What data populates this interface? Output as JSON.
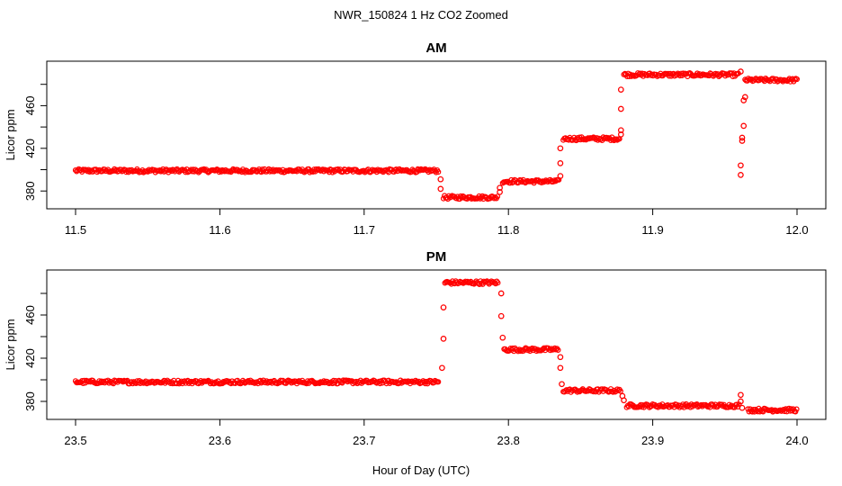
{
  "figure": {
    "title": "NWR_150824  1 Hz CO2 Zoomed",
    "xlabel": "Hour of Day (UTC)"
  },
  "colors": {
    "points": "#ff0000",
    "axes": "#000000",
    "background": "#ffffff"
  },
  "chart_data": [
    {
      "type": "scatter",
      "title": "AM",
      "xlabel": "Hour of Day (UTC)",
      "ylabel": "Licor ppm",
      "xlim": [
        11.5,
        12.0
      ],
      "ylim": [
        365,
        500
      ],
      "x_ticks": [
        11.5,
        11.6,
        11.7,
        11.8,
        11.9,
        12.0
      ],
      "x_tick_labels": [
        "11.5",
        "11.6",
        "11.7",
        "11.8",
        "11.9",
        "12.0"
      ],
      "y_ticks": [
        380,
        420,
        460
      ],
      "y_tick_labels": [
        "380",
        "420",
        "460"
      ],
      "grid": false,
      "legend": "none",
      "dense_segments": [
        {
          "x_start": 11.5,
          "x_end": 11.752,
          "y": 399
        },
        {
          "x_start": 11.755,
          "x_end": 11.793,
          "y": 374
        },
        {
          "x_start": 11.796,
          "x_end": 11.835,
          "y": 389
        },
        {
          "x_start": 11.838,
          "x_end": 11.877,
          "y": 429
        },
        {
          "x_start": 11.88,
          "x_end": 11.96,
          "y": 489
        },
        {
          "x_start": 11.964,
          "x_end": 12.0,
          "y": 484
        }
      ],
      "transition_points": [
        {
          "x": 11.753,
          "y": 391
        },
        {
          "x": 11.753,
          "y": 382
        },
        {
          "x": 11.794,
          "y": 379
        },
        {
          "x": 11.794,
          "y": 383
        },
        {
          "x": 11.836,
          "y": 394
        },
        {
          "x": 11.836,
          "y": 406
        },
        {
          "x": 11.836,
          "y": 420
        },
        {
          "x": 11.878,
          "y": 433
        },
        {
          "x": 11.878,
          "y": 437
        },
        {
          "x": 11.878,
          "y": 457
        },
        {
          "x": 11.878,
          "y": 475
        },
        {
          "x": 11.961,
          "y": 395
        },
        {
          "x": 11.961,
          "y": 404
        },
        {
          "x": 11.962,
          "y": 427
        },
        {
          "x": 11.962,
          "y": 430
        },
        {
          "x": 11.963,
          "y": 441
        },
        {
          "x": 11.963,
          "y": 465
        },
        {
          "x": 11.964,
          "y": 468
        },
        {
          "x": 11.961,
          "y": 492
        }
      ]
    },
    {
      "type": "scatter",
      "title": "PM",
      "xlabel": "Hour of Day (UTC)",
      "ylabel": "Licor ppm",
      "xlim": [
        23.5,
        24.0
      ],
      "ylim": [
        365,
        500
      ],
      "x_ticks": [
        23.5,
        23.6,
        23.7,
        23.8,
        23.9,
        24.0
      ],
      "x_tick_labels": [
        "23.5",
        "23.6",
        "23.7",
        "23.8",
        "23.9",
        "24.0"
      ],
      "y_ticks": [
        380,
        420,
        460
      ],
      "y_tick_labels": [
        "380",
        "420",
        "460"
      ],
      "grid": false,
      "legend": "none",
      "dense_segments": [
        {
          "x_start": 23.5,
          "x_end": 23.752,
          "y": 398
        },
        {
          "x_start": 23.756,
          "x_end": 23.793,
          "y": 490
        },
        {
          "x_start": 23.797,
          "x_end": 23.835,
          "y": 428
        },
        {
          "x_start": 23.838,
          "x_end": 23.878,
          "y": 390
        },
        {
          "x_start": 23.882,
          "x_end": 23.96,
          "y": 376
        },
        {
          "x_start": 23.966,
          "x_end": 24.0,
          "y": 372
        }
      ],
      "transition_points": [
        {
          "x": 23.754,
          "y": 411
        },
        {
          "x": 23.755,
          "y": 438
        },
        {
          "x": 23.755,
          "y": 467
        },
        {
          "x": 23.795,
          "y": 480
        },
        {
          "x": 23.795,
          "y": 459
        },
        {
          "x": 23.796,
          "y": 439
        },
        {
          "x": 23.836,
          "y": 421
        },
        {
          "x": 23.836,
          "y": 411
        },
        {
          "x": 23.837,
          "y": 396
        },
        {
          "x": 23.879,
          "y": 385
        },
        {
          "x": 23.88,
          "y": 381
        },
        {
          "x": 23.961,
          "y": 386
        },
        {
          "x": 23.961,
          "y": 380
        },
        {
          "x": 23.962,
          "y": 374
        }
      ]
    }
  ]
}
